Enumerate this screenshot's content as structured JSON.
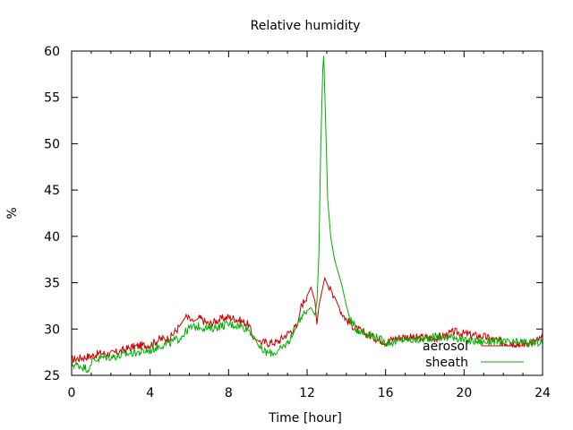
{
  "chart_data": {
    "type": "line",
    "title": "Relative humidity",
    "xlabel": "Time [hour]",
    "ylabel": "%",
    "xlim": [
      0,
      24
    ],
    "ylim": [
      25,
      60
    ],
    "xticks": [
      0,
      4,
      8,
      12,
      16,
      20,
      24
    ],
    "yticks": [
      25,
      30,
      35,
      40,
      45,
      50,
      55,
      60
    ],
    "grid": false,
    "legend_position": "bottom-right",
    "series": [
      {
        "name": "aerosol",
        "color": "#cc0000",
        "points": [
          [
            0,
            26.7
          ],
          [
            0.5,
            26.9
          ],
          [
            1,
            27.1
          ],
          [
            1.5,
            27.4
          ],
          [
            2,
            27.3
          ],
          [
            2.5,
            27.6
          ],
          [
            3,
            28.0
          ],
          [
            3.5,
            28.2
          ],
          [
            4,
            28.3
          ],
          [
            4.5,
            28.9
          ],
          [
            5,
            29.0
          ],
          [
            5.5,
            30.3
          ],
          [
            5.8,
            31.3
          ],
          [
            6.2,
            30.8
          ],
          [
            6.5,
            31.2
          ],
          [
            7,
            30.5
          ],
          [
            7.5,
            31.0
          ],
          [
            8,
            31.3
          ],
          [
            8.5,
            31.0
          ],
          [
            9,
            30.5
          ],
          [
            9.3,
            29.0
          ],
          [
            9.6,
            28.6
          ],
          [
            10,
            28.5
          ],
          [
            10.5,
            28.6
          ],
          [
            11,
            29.5
          ],
          [
            11.5,
            30.3
          ],
          [
            11.7,
            32.5
          ],
          [
            12,
            33.6
          ],
          [
            12.2,
            34.5
          ],
          [
            12.4,
            33.0
          ],
          [
            12.5,
            30.5
          ],
          [
            12.6,
            32.5
          ],
          [
            12.8,
            34.5
          ],
          [
            12.9,
            35.5
          ],
          [
            13.1,
            34.5
          ],
          [
            13.4,
            33.5
          ],
          [
            13.7,
            32.0
          ],
          [
            14,
            31.0
          ],
          [
            14.5,
            30.0
          ],
          [
            15,
            29.5
          ],
          [
            15.5,
            29.0
          ],
          [
            16,
            28.6
          ],
          [
            16.5,
            29.0
          ],
          [
            17,
            29.2
          ],
          [
            17.5,
            29.0
          ],
          [
            18,
            29.1
          ],
          [
            18.5,
            29.0
          ],
          [
            19,
            29.3
          ],
          [
            19.5,
            29.7
          ],
          [
            20,
            29.5
          ],
          [
            20.5,
            29.3
          ],
          [
            21,
            29.2
          ],
          [
            21.5,
            28.8
          ],
          [
            22,
            28.6
          ],
          [
            22.5,
            28.5
          ],
          [
            23,
            28.4
          ],
          [
            23.5,
            28.6
          ],
          [
            24,
            29.0
          ]
        ]
      },
      {
        "name": "sheath",
        "color": "#00b000",
        "points": [
          [
            0,
            26.2
          ],
          [
            0.5,
            26.0
          ],
          [
            0.9,
            25.6
          ],
          [
            1,
            26.5
          ],
          [
            1.5,
            26.9
          ],
          [
            2,
            27.0
          ],
          [
            2.5,
            27.1
          ],
          [
            3,
            27.4
          ],
          [
            3.5,
            27.5
          ],
          [
            4,
            27.7
          ],
          [
            4.5,
            28.2
          ],
          [
            5,
            28.5
          ],
          [
            5.5,
            29.0
          ],
          [
            6,
            30.1
          ],
          [
            6.5,
            30.3
          ],
          [
            7,
            30.0
          ],
          [
            7.5,
            30.3
          ],
          [
            8,
            30.5
          ],
          [
            8.5,
            30.4
          ],
          [
            9,
            30.0
          ],
          [
            9.3,
            29.2
          ],
          [
            9.6,
            27.8
          ],
          [
            10,
            27.4
          ],
          [
            10.5,
            27.5
          ],
          [
            11,
            28.5
          ],
          [
            11.3,
            29.5
          ],
          [
            11.6,
            31.0
          ],
          [
            12,
            32.0
          ],
          [
            12.2,
            32.3
          ],
          [
            12.4,
            31.5
          ],
          [
            12.5,
            33.0
          ],
          [
            12.6,
            38.0
          ],
          [
            12.7,
            50.0
          ],
          [
            12.8,
            58.0
          ],
          [
            12.85,
            59.5
          ],
          [
            12.95,
            52.0
          ],
          [
            13.05,
            44.0
          ],
          [
            13.2,
            40.0
          ],
          [
            13.4,
            37.5
          ],
          [
            13.6,
            36.0
          ],
          [
            13.8,
            34.5
          ],
          [
            14,
            32.5
          ],
          [
            14.2,
            31.0
          ],
          [
            14.5,
            30.0
          ],
          [
            15,
            29.5
          ],
          [
            15.5,
            29.2
          ],
          [
            16,
            28.5
          ],
          [
            16.5,
            28.6
          ],
          [
            17,
            28.9
          ],
          [
            17.5,
            28.8
          ],
          [
            18,
            28.9
          ],
          [
            18.5,
            29.2
          ],
          [
            19,
            29.0
          ],
          [
            19.5,
            29.2
          ],
          [
            20,
            28.7
          ],
          [
            20.5,
            28.7
          ],
          [
            21,
            28.6
          ],
          [
            21.5,
            28.7
          ],
          [
            22,
            28.6
          ],
          [
            22.5,
            28.5
          ],
          [
            23,
            28.6
          ],
          [
            23.5,
            28.4
          ],
          [
            24,
            28.7
          ]
        ]
      }
    ]
  }
}
